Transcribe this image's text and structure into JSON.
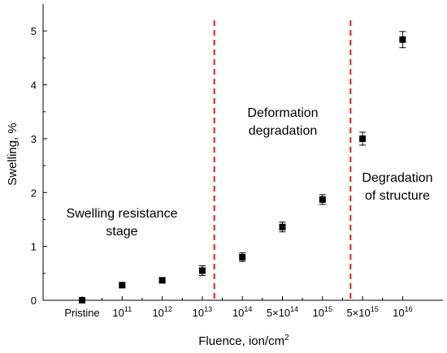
{
  "chart_data": {
    "type": "scatter",
    "xlabel": "Fluence, ion/cm",
    "xlabel_superscript": "2",
    "ylabel": "Swelling, %",
    "ylim": [
      0,
      5.5
    ],
    "yticks": [
      "0",
      "1",
      "2",
      "3",
      "4",
      "5"
    ],
    "categories": [
      {
        "base": "Pristine",
        "exp": ""
      },
      {
        "base": "10",
        "exp": "11"
      },
      {
        "base": "10",
        "exp": "12"
      },
      {
        "base": "10",
        "exp": "13"
      },
      {
        "base": "10",
        "exp": "14"
      },
      {
        "base": "5×10",
        "exp": "14"
      },
      {
        "base": "10",
        "exp": "15"
      },
      {
        "base": "5×10",
        "exp": "15"
      },
      {
        "base": "10",
        "exp": "16"
      }
    ],
    "points": [
      {
        "y": 0.0,
        "err": 0.0
      },
      {
        "y": 0.28,
        "err": 0.04
      },
      {
        "y": 0.37,
        "err": 0.05
      },
      {
        "y": 0.55,
        "err": 0.09
      },
      {
        "y": 0.8,
        "err": 0.08
      },
      {
        "y": 1.36,
        "err": 0.09
      },
      {
        "y": 1.87,
        "err": 0.09
      },
      {
        "y": 3.0,
        "err": 0.12
      },
      {
        "y": 4.84,
        "err": 0.15
      }
    ],
    "marker_color": "#000000",
    "dividers": [
      {
        "after_index": 3.3,
        "color": "#e41a1c"
      },
      {
        "after_index": 6.7,
        "color": "#e41a1c"
      }
    ],
    "annotations": [
      {
        "lines": [
          "Swelling resistance",
          "stage"
        ]
      },
      {
        "lines": [
          "Deformation",
          "degradation"
        ]
      },
      {
        "lines": [
          "Degradation",
          "of structure"
        ]
      }
    ]
  }
}
